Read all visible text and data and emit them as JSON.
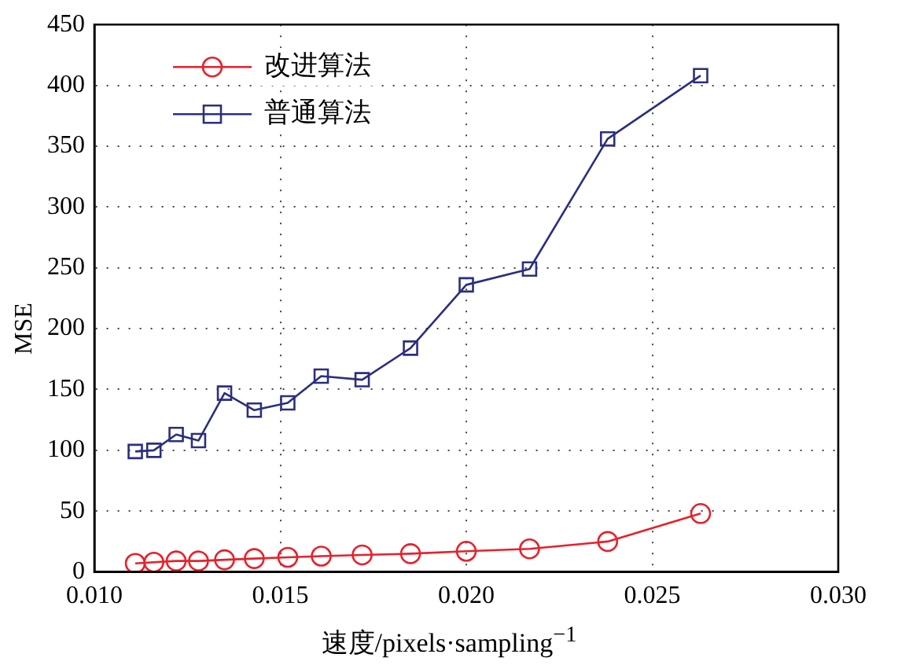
{
  "chart_data": {
    "type": "line",
    "xlabel": "速度/pixels·sampling$^{−1}$",
    "ylabel": "MSE",
    "x": [
      0.0111,
      0.0116,
      0.0122,
      0.0128,
      0.0135,
      0.0143,
      0.0152,
      0.0161,
      0.0172,
      0.0185,
      0.02,
      0.0217,
      0.0238,
      0.0263
    ],
    "series": [
      {
        "name": "改进算法",
        "color": "#e8202a",
        "marker": "circle",
        "values": [
          7,
          8,
          9,
          9,
          10,
          11,
          12,
          13,
          14,
          15,
          17,
          19,
          25,
          48
        ]
      },
      {
        "name": "普通算法",
        "color": "#2b2f7f",
        "marker": "square",
        "values": [
          99,
          100,
          113,
          108,
          147,
          133,
          139,
          161,
          158,
          184,
          236,
          249,
          356,
          408
        ]
      }
    ],
    "xlim": [
      0.01,
      0.03
    ],
    "xticks": [
      {
        "value": 0.01,
        "label": "0.010"
      },
      {
        "value": 0.015,
        "label": "0.015"
      },
      {
        "value": 0.02,
        "label": "0.020"
      },
      {
        "value": 0.025,
        "label": "0.025"
      },
      {
        "value": 0.03,
        "label": "0.030"
      }
    ],
    "ylim": [
      0,
      450
    ],
    "yticks": [
      0,
      50,
      100,
      150,
      200,
      250,
      300,
      350,
      400,
      450
    ],
    "grid": true,
    "legend": "top left"
  }
}
